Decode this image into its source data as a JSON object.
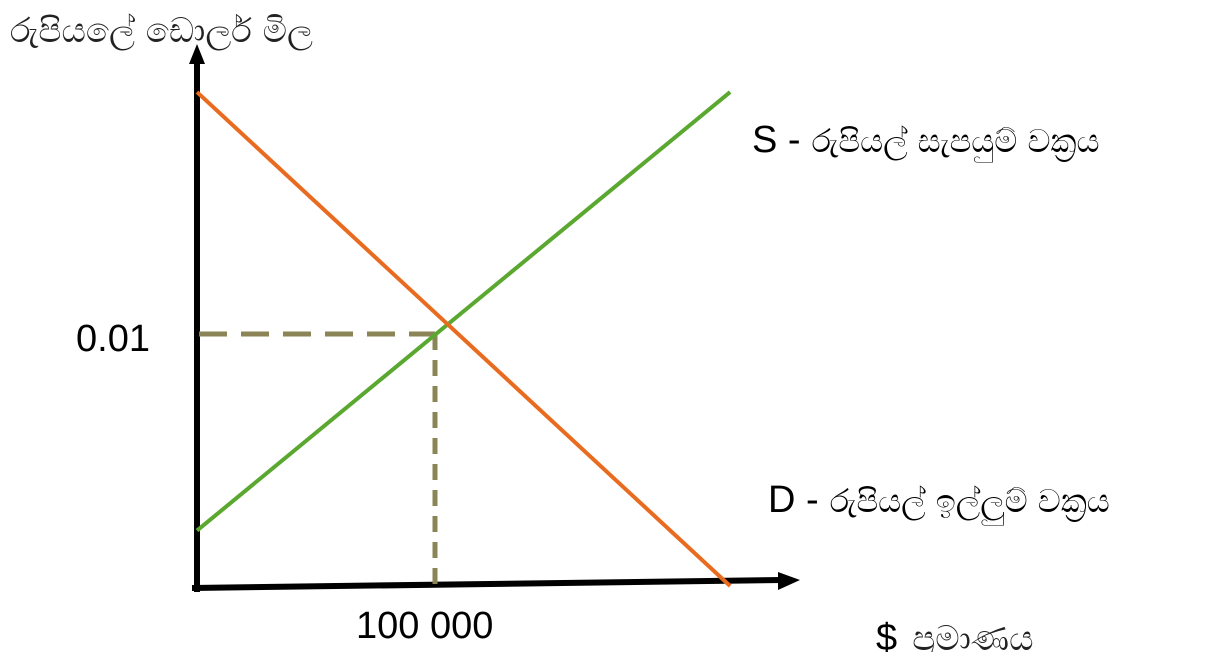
{
  "chart_data": {
    "type": "line",
    "title": "",
    "ylabel": "රුපියලේ  ඩොලර් මිල",
    "xlabel": "ප්‍රමාණය",
    "xlabel_prefix": "$",
    "xlim": [
      0,
      200000
    ],
    "ylim": [
      0,
      0.02
    ],
    "grid": false,
    "equilibrium": {
      "x": 100000,
      "y": 0.01
    },
    "tick_labels": {
      "x": "100 000",
      "y": "0.01"
    },
    "series": [
      {
        "key": "S",
        "name": "රුපියල් සැපයුම් වක්‍රය",
        "prefix": "S -",
        "color": "#5aa830",
        "x": [
          0,
          224000
        ],
        "y": [
          0.0022,
          0.0196
        ]
      },
      {
        "key": "D",
        "name": "රුපියල් ඉල්ලුම් වක්‍රය",
        "prefix": "D -",
        "color": "#e96b1f",
        "x": [
          0,
          224000
        ],
        "y": [
          0.0196,
          0.0
        ]
      }
    ],
    "colors": {
      "axis": "#000000",
      "guide": "#8b8456"
    }
  }
}
